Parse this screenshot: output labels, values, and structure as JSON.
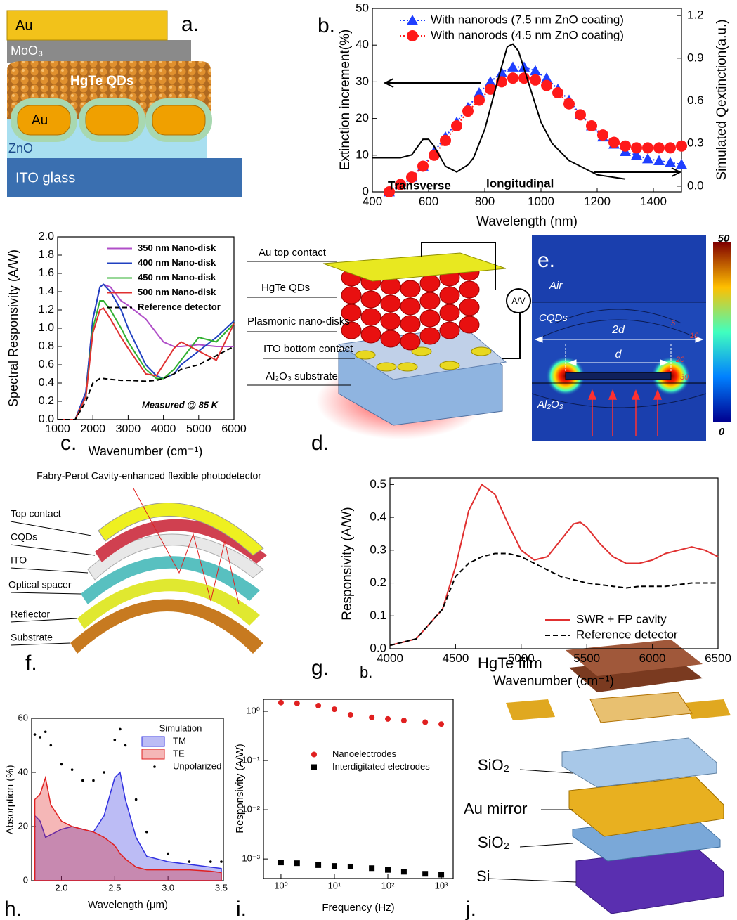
{
  "panel_labels": [
    "a.",
    "b.",
    "c.",
    "d.",
    "e.",
    "f.",
    "g.",
    "b.",
    "h.",
    "i.",
    "j."
  ],
  "diagrams": {
    "a": [
      "Au",
      "MoO₃",
      "HgTe QDs",
      "Au",
      "ZnO",
      "ITO glass"
    ],
    "d": [
      "Au top contact",
      "HgTe QDs",
      "Plasmonic nano-disks",
      "ITO bottom contact",
      "Al₂O₃ substrate",
      "A/V"
    ],
    "e": {
      "labels": [
        "Air",
        "CQDs",
        "2d",
        "d",
        "5",
        "10",
        "20",
        "30",
        "Al₂O₃"
      ],
      "colorbar_ticks": [
        50,
        0
      ]
    },
    "f": [
      "Fabry-Perot Cavity-enhanced flexible photodetector",
      "Top contact",
      "CQDs",
      "ITO",
      "Optical spacer",
      "Reflector",
      "Substrate"
    ],
    "j": [
      "HgTe film",
      "SiO₂",
      "Au mirror",
      "SiO₂",
      "Si"
    ]
  },
  "chart_data": [
    {
      "type": "line",
      "xlabel": "Wavelength (nm)",
      "ylabel": "Extinction increment(%)",
      "y2label": "Simulated Qextinction(a.u.)",
      "xlim": [
        400,
        1500
      ],
      "xticks": [
        400,
        600,
        800,
        1000,
        1200,
        1400
      ],
      "ylim": [
        0,
        50
      ],
      "yticks": [
        0,
        10,
        20,
        30,
        40,
        50
      ],
      "y2lim": [
        -0.04,
        1.25
      ],
      "y2ticks": [
        {
          "value": 0,
          "label": "0.0"
        },
        0.3,
        0.6,
        0.9,
        1.2
      ],
      "legend": "upper right",
      "annotations": [
        "Transverse",
        "longitudinal"
      ],
      "x": [
        460,
        500,
        540,
        580,
        620,
        660,
        700,
        740,
        780,
        820,
        860,
        900,
        940,
        980,
        1020,
        1060,
        1100,
        1140,
        1180,
        1220,
        1260,
        1300,
        1340,
        1380,
        1420,
        1460,
        1500
      ],
      "series": [
        {
          "name": "With nanorods (7.5 nm ZnO coating)",
          "color": "#1f3fff",
          "line": "dotted",
          "marker": "triangle",
          "values": [
            0,
            2,
            4,
            7,
            11,
            15,
            19,
            23,
            27,
            30,
            32.5,
            34,
            34,
            33,
            31,
            28,
            25,
            21,
            18,
            15,
            13,
            11,
            10,
            9,
            8.5,
            8,
            7.5
          ]
        },
        {
          "name": "With nanorods (4.5 nm ZnO coating)",
          "color": "#ff1a1a",
          "line": "dotted",
          "marker": "circle",
          "values": [
            0,
            2,
            4,
            7,
            10,
            14,
            18,
            22,
            25,
            28,
            30,
            31,
            31,
            30.5,
            29,
            27,
            24,
            21,
            18,
            15.5,
            13.5,
            12.5,
            12,
            12,
            12,
            12,
            12.5
          ]
        },
        {
          "color": "#000000",
          "line": "solid",
          "axis": "y2",
          "x": [
            400,
            500,
            540,
            580,
            600,
            620,
            660,
            700,
            740,
            760,
            800,
            840,
            880,
            900,
            920,
            960,
            1000,
            1040,
            1100,
            1200,
            1300
          ],
          "values": [
            0.2,
            0.2,
            0.22,
            0.33,
            0.33,
            0.28,
            0.14,
            0.1,
            0.15,
            0.2,
            0.4,
            0.7,
            0.98,
            1.0,
            0.95,
            0.7,
            0.45,
            0.3,
            0.18,
            0.08,
            0.05
          ]
        }
      ]
    },
    {
      "type": "line",
      "xlabel": "Wavenumber (cm⁻¹)",
      "ylabel": "Spectral Responsivity (A/W)",
      "xlim": [
        1000,
        6000
      ],
      "xticks": [
        1000,
        2000,
        3000,
        4000,
        5000,
        6000
      ],
      "ylim": [
        0,
        2
      ],
      "yticks": [
        {
          "value": 0,
          "label": "0.0"
        },
        0.2,
        0.4,
        0.6,
        0.8,
        {
          "value": 1,
          "label": "1.0"
        },
        1.2,
        1.4,
        1.6,
        1.8,
        {
          "value": 2,
          "label": "2.0"
        }
      ],
      "legend": "upper right",
      "annotations": [
        "Measured @ 85 K"
      ],
      "x": [
        1000,
        1500,
        1800,
        2000,
        2200,
        2300,
        2500,
        2800,
        3000,
        3500,
        3800,
        4000,
        4300,
        4500,
        5000,
        5500,
        6000
      ],
      "series": [
        {
          "name": "350 nm Nano-disk",
          "color": "#b04fc8",
          "line": "solid",
          "values": [
            0,
            0,
            0.3,
            1.1,
            1.45,
            1.48,
            1.45,
            1.3,
            1.25,
            1.1,
            0.95,
            0.85,
            0.8,
            0.8,
            0.82,
            0.8,
            0.8
          ]
        },
        {
          "name": "400 nm Nano-disk",
          "color": "#2040c0",
          "line": "solid",
          "values": [
            0,
            0,
            0.3,
            1.1,
            1.45,
            1.48,
            1.4,
            1.2,
            1.0,
            0.6,
            0.48,
            0.45,
            0.5,
            0.6,
            0.75,
            0.9,
            1.08
          ]
        },
        {
          "name": "450 nm Nano-disk",
          "color": "#30b030",
          "line": "solid",
          "values": [
            0,
            0,
            0.25,
            1.0,
            1.3,
            1.3,
            1.2,
            1.0,
            0.85,
            0.55,
            0.45,
            0.45,
            0.55,
            0.65,
            0.9,
            0.85,
            1.05
          ]
        },
        {
          "name": "500 nm Nano-disk",
          "color": "#e03030",
          "line": "solid",
          "values": [
            0,
            0,
            0.25,
            0.95,
            1.2,
            1.22,
            1.1,
            0.9,
            0.78,
            0.5,
            0.48,
            0.6,
            0.78,
            0.85,
            0.75,
            0.65,
            1.05
          ]
        },
        {
          "name": "Reference detector",
          "color": "#000000",
          "line": "dashed",
          "values": [
            0,
            0,
            0.2,
            0.4,
            0.45,
            0.45,
            0.44,
            0.43,
            0.43,
            0.42,
            0.43,
            0.45,
            0.5,
            0.55,
            0.6,
            0.7,
            0.8
          ]
        }
      ]
    },
    {
      "type": "line",
      "xlabel": "Wavenumber (cm⁻¹)",
      "ylabel": "Responsivity (A/W)",
      "xlim": [
        4000,
        6500
      ],
      "xticks": [
        4000,
        4500,
        5000,
        5500,
        6000,
        6500
      ],
      "ylim": [
        0,
        0.52
      ],
      "yticks": [
        {
          "value": 0,
          "label": "0.0"
        },
        0.1,
        0.2,
        0.3,
        0.4,
        0.5
      ],
      "legend": "lower right",
      "x": [
        4000,
        4200,
        4400,
        4500,
        4600,
        4700,
        4800,
        4900,
        5000,
        5100,
        5200,
        5300,
        5400,
        5450,
        5500,
        5600,
        5700,
        5800,
        5900,
        6000,
        6100,
        6200,
        6300,
        6400,
        6500
      ],
      "series": [
        {
          "name": "SWR + FP cavity",
          "color": "#e03030",
          "line": "solid",
          "values": [
            0.01,
            0.03,
            0.12,
            0.25,
            0.42,
            0.5,
            0.47,
            0.38,
            0.3,
            0.27,
            0.28,
            0.33,
            0.38,
            0.385,
            0.37,
            0.32,
            0.28,
            0.26,
            0.26,
            0.27,
            0.29,
            0.3,
            0.31,
            0.3,
            0.28
          ]
        },
        {
          "name": "Reference detector",
          "color": "#000000",
          "line": "dashed",
          "values": [
            0.01,
            0.03,
            0.12,
            0.22,
            0.26,
            0.28,
            0.29,
            0.29,
            0.28,
            0.26,
            0.24,
            0.22,
            0.21,
            0.205,
            0.2,
            0.195,
            0.19,
            0.185,
            0.19,
            0.19,
            0.19,
            0.195,
            0.2,
            0.2,
            0.2
          ]
        }
      ]
    },
    {
      "type": "area",
      "xlabel": "Wavelength (μm)",
      "ylabel": "Absorption (%)",
      "xlim": [
        1.72,
        3.52
      ],
      "xticks": [
        {
          "value": 2,
          "label": "2.0"
        },
        2.5,
        {
          "value": 3,
          "label": "3.0"
        },
        3.5
      ],
      "ylim": [
        0,
        60
      ],
      "yticks": [
        0,
        20,
        40,
        60
      ],
      "legend": "upper right",
      "legend_title": "Simulation",
      "x": [
        1.75,
        1.8,
        1.85,
        1.9,
        2.0,
        2.1,
        2.2,
        2.3,
        2.4,
        2.5,
        2.55,
        2.6,
        2.7,
        2.8,
        3.0,
        3.2,
        3.4,
        3.5
      ],
      "series": [
        {
          "name": "TM",
          "color": "#3030e0",
          "values": [
            24,
            22,
            16,
            17,
            19,
            20,
            19,
            18,
            24,
            38,
            40,
            30,
            16,
            9,
            7,
            6,
            5,
            4.5
          ]
        },
        {
          "name": "TE",
          "color": "#e02020",
          "values": [
            30,
            32,
            38,
            28,
            22,
            20,
            19,
            18,
            16,
            13,
            10,
            8,
            5,
            4,
            4,
            4,
            3.5,
            3
          ]
        },
        {
          "name": "Unpolarized",
          "color": "#000000",
          "type": "scatter",
          "marker": "dot",
          "values": [
            54,
            53,
            55,
            50,
            43,
            41,
            37,
            37,
            40,
            52,
            56,
            50,
            30,
            18,
            10,
            7,
            7,
            7
          ]
        }
      ]
    },
    {
      "type": "scatter",
      "xlabel": "Frequency (Hz)",
      "ylabel": "Responsivity (A/W)",
      "xscale": "log",
      "yscale": "log",
      "xlim": [
        0.47,
        1670
      ],
      "xticks": [
        {
          "value": 1,
          "label": "10⁰"
        },
        {
          "value": 10,
          "label": "10¹"
        },
        {
          "value": 100,
          "label": "10²"
        },
        {
          "value": 1000,
          "label": "10³"
        }
      ],
      "ylim": [
        0.0004,
        1.75
      ],
      "yticks": [
        {
          "value": 0.001,
          "label": "10⁻³"
        },
        {
          "value": 0.01,
          "label": "10⁻²"
        },
        {
          "value": 0.1,
          "label": "10⁻¹"
        },
        {
          "value": 1,
          "label": "10⁰"
        }
      ],
      "legend": "center right",
      "x": [
        1,
        2,
        5,
        10,
        20,
        50,
        100,
        200,
        500,
        1000
      ],
      "series": [
        {
          "name": "Nanoelectrodes",
          "color": "#e02020",
          "marker": "circle",
          "values": [
            1.5,
            1.45,
            1.3,
            1.1,
            0.85,
            0.75,
            0.7,
            0.65,
            0.6,
            0.55
          ]
        },
        {
          "name": "Interdigitated electrodes",
          "color": "#000000",
          "marker": "square",
          "values": [
            0.00085,
            0.00082,
            0.00075,
            0.00072,
            0.0007,
            0.00065,
            0.0006,
            0.00055,
            0.0005,
            0.00048
          ]
        }
      ]
    }
  ]
}
